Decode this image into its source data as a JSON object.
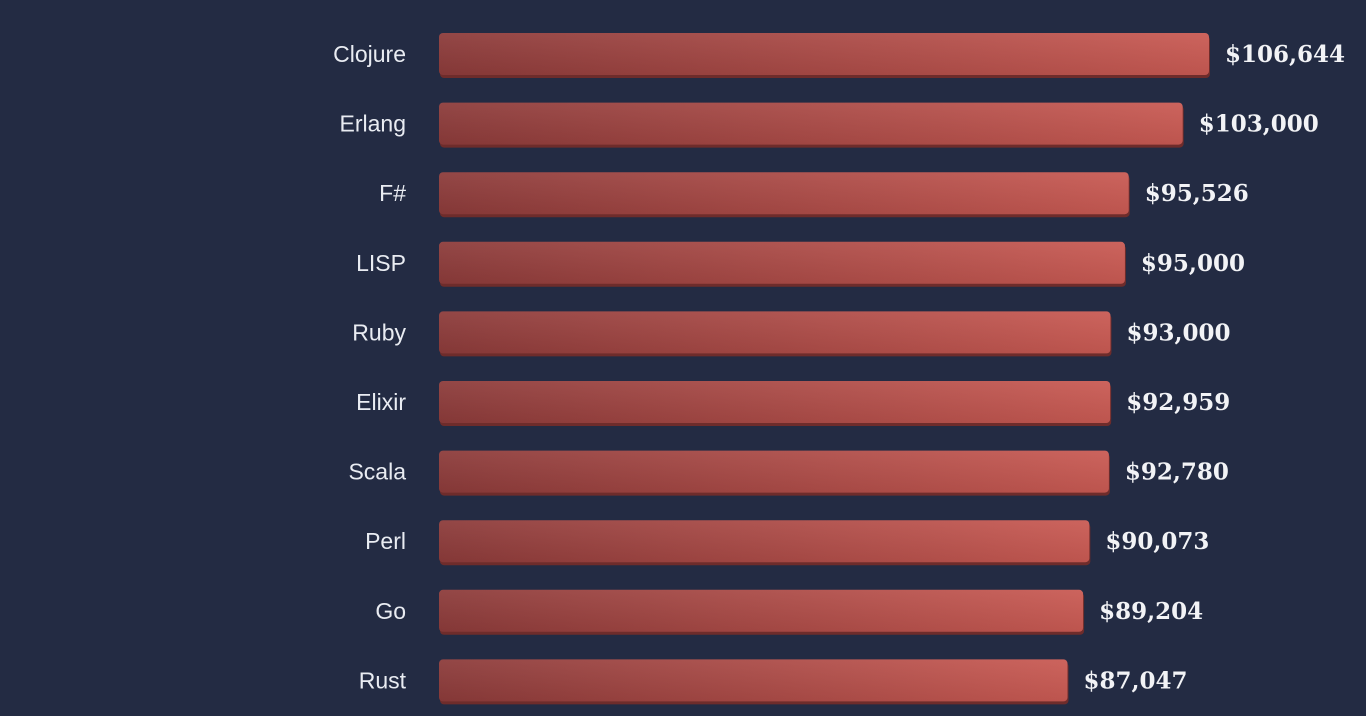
{
  "colors": {
    "background": "#232b43",
    "bar_start": "#8c3b3a",
    "bar_end": "#c95a53",
    "bar_shadow": "#6e2c2b",
    "label_text": "#e9ecf2"
  },
  "chart_data": {
    "type": "bar",
    "orientation": "horizontal",
    "categories": [
      "Clojure",
      "Erlang",
      "F#",
      "LISP",
      "Ruby",
      "Elixir",
      "Scala",
      "Perl",
      "Go",
      "Rust"
    ],
    "values": [
      106644,
      103000,
      95526,
      95000,
      93000,
      92959,
      92780,
      90073,
      89204,
      87047
    ],
    "value_labels": [
      "$106,644",
      "$103,000",
      "$95,526",
      "$95,000",
      "$93,000",
      "$92,959",
      "$92,780",
      "$90,073",
      "$89,204",
      "$87,047"
    ],
    "grid": false,
    "legend": "none"
  }
}
